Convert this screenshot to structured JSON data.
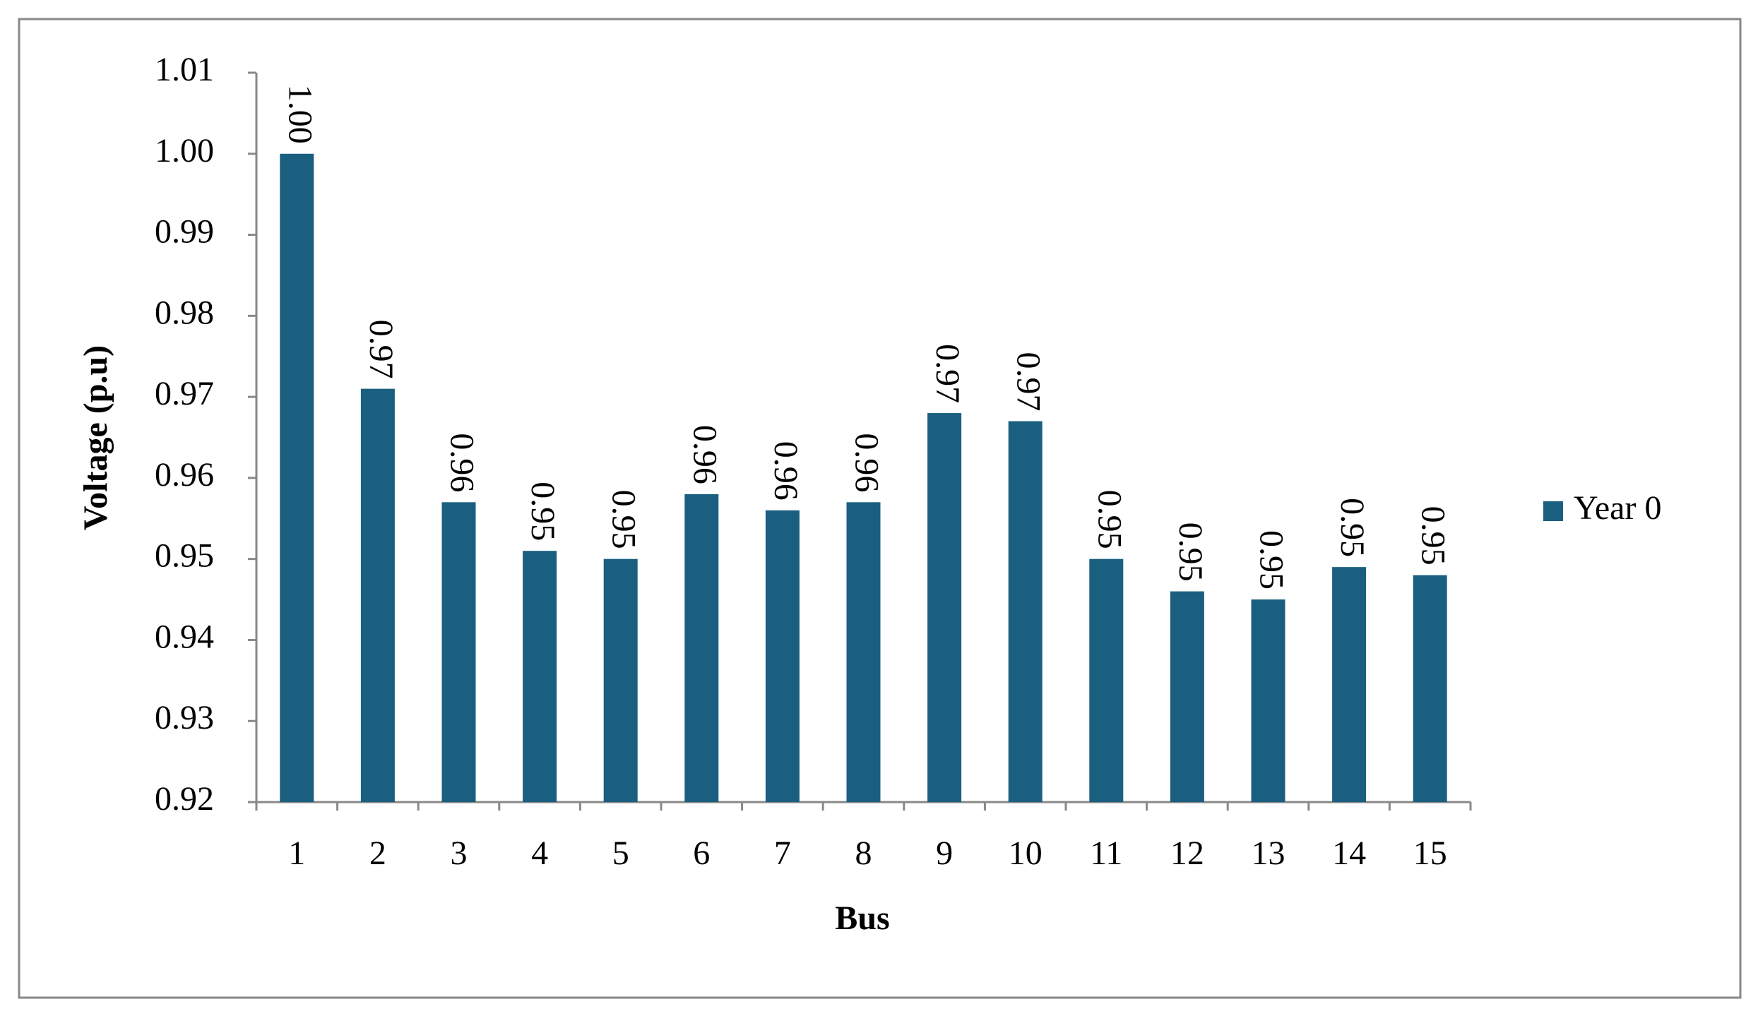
{
  "chart_data": {
    "type": "bar",
    "x_label": "Bus",
    "y_label": "Voltage (p.u)",
    "categories": [
      "1",
      "2",
      "3",
      "4",
      "5",
      "6",
      "7",
      "8",
      "9",
      "10",
      "11",
      "12",
      "13",
      "14",
      "15"
    ],
    "series": [
      {
        "name": "Year 0",
        "color": "#1a5f80",
        "values": [
          1.0,
          0.971,
          0.957,
          0.951,
          0.95,
          0.958,
          0.956,
          0.957,
          0.968,
          0.967,
          0.95,
          0.946,
          0.945,
          0.949,
          0.948
        ],
        "value_labels": [
          "1.00",
          "0.97",
          "0.96",
          "0.95",
          "0.95",
          "0.96",
          "0.96",
          "0.96",
          "0.97",
          "0.97",
          "0.95",
          "0.95",
          "0.95",
          "0.95",
          "0.95"
        ]
      }
    ],
    "ylim": [
      0.92,
      1.01
    ],
    "yticks": [
      0.92,
      0.93,
      0.94,
      0.95,
      0.96,
      0.97,
      0.98,
      0.99,
      {
        "value": 1.0,
        "label": "1.00"
      },
      1.01
    ],
    "grid": false,
    "legend": "right"
  }
}
